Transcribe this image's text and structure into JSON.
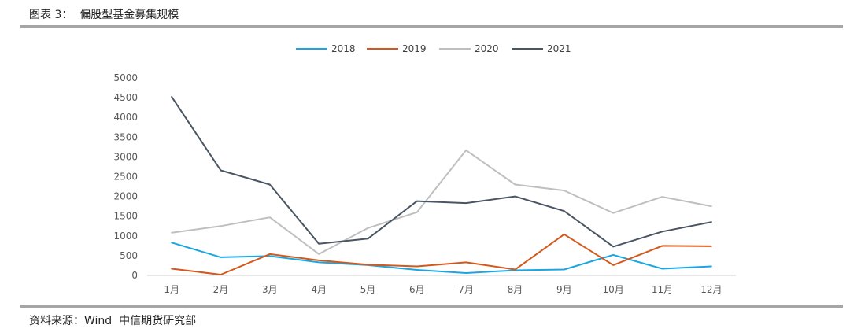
{
  "header": {
    "title": "图表 3：  偏股型基金募集规模"
  },
  "footer": {
    "source": "资料来源：Wind  中信期货研究部"
  },
  "chart_data": {
    "type": "line",
    "x": [
      "1月",
      "2月",
      "3月",
      "4月",
      "5月",
      "6月",
      "7月",
      "8月",
      "9月",
      "10月",
      "11月",
      "12月"
    ],
    "ylim": [
      0,
      5000
    ],
    "yticks": [
      0,
      500,
      1000,
      1500,
      2000,
      2500,
      3000,
      3500,
      4000,
      4500,
      5000
    ],
    "grid": false,
    "legend_position": "top",
    "series": [
      {
        "name": "2018",
        "color": "#1aa6e0",
        "values": [
          830,
          460,
          490,
          330,
          260,
          140,
          60,
          130,
          150,
          520,
          170,
          230
        ]
      },
      {
        "name": "2019",
        "color": "#d4581c",
        "values": [
          170,
          20,
          540,
          380,
          270,
          230,
          330,
          150,
          1040,
          260,
          750,
          740
        ]
      },
      {
        "name": "2020",
        "color": "#bfbfbf",
        "values": [
          1080,
          1250,
          1470,
          540,
          1200,
          1600,
          3170,
          2300,
          2150,
          1580,
          1990,
          1750
        ]
      },
      {
        "name": "2021",
        "color": "#4a5563",
        "values": [
          4520,
          2660,
          2300,
          800,
          930,
          1880,
          1830,
          2000,
          1630,
          730,
          1110,
          1350
        ]
      }
    ]
  }
}
